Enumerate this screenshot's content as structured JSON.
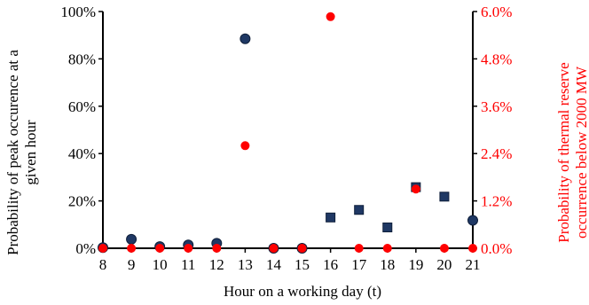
{
  "chart_data": {
    "type": "scatter",
    "xlabel": "Hour on a working day (t)",
    "ylabel_left_line1": "Probability of peak occurence at a",
    "ylabel_left_line2": "given hour",
    "ylabel_right_line1": "Probability of thermal reserve",
    "ylabel_right_line2": "occurrence below 2000 MW",
    "x_ticks": [
      "8",
      "9",
      "10",
      "11",
      "12",
      "13",
      "14",
      "15",
      "16",
      "17",
      "18",
      "19",
      "20",
      "21"
    ],
    "xlim": [
      8,
      21
    ],
    "y_left": {
      "lim": [
        0,
        100
      ],
      "ticks": [
        0,
        20,
        40,
        60,
        80,
        100
      ],
      "tick_labels": [
        "0%",
        "20%",
        "40%",
        "60%",
        "80%",
        "100%"
      ],
      "color": "#000000"
    },
    "y_right": {
      "lim": [
        0,
        6
      ],
      "ticks": [
        0,
        1.2,
        2.4,
        3.6,
        4.8,
        6.0
      ],
      "tick_labels": [
        "0.0%",
        "1.2%",
        "2.4%",
        "3.6%",
        "4.8%",
        "6.0%"
      ],
      "color": "#ff0000"
    },
    "series": [
      {
        "axis": "left",
        "color": "#1f3864",
        "points": [
          {
            "x": 8,
            "y": 0.3,
            "marker": "circle"
          },
          {
            "x": 9,
            "y": 3.8,
            "marker": "circle"
          },
          {
            "x": 10,
            "y": 0.7,
            "marker": "circle"
          },
          {
            "x": 11,
            "y": 1.4,
            "marker": "circle"
          },
          {
            "x": 12,
            "y": 2.1,
            "marker": "circle"
          },
          {
            "x": 13,
            "y": 88.5,
            "marker": "circle"
          },
          {
            "x": 14,
            "y": 0.0,
            "marker": "circle"
          },
          {
            "x": 15,
            "y": 0.0,
            "marker": "circle"
          },
          {
            "x": 16,
            "y": 13.0,
            "marker": "square"
          },
          {
            "x": 17,
            "y": 16.2,
            "marker": "square"
          },
          {
            "x": 18,
            "y": 8.8,
            "marker": "square"
          },
          {
            "x": 19,
            "y": 25.8,
            "marker": "square"
          },
          {
            "x": 20,
            "y": 21.8,
            "marker": "square"
          },
          {
            "x": 21,
            "y": 11.8,
            "marker": "circle"
          }
        ]
      },
      {
        "axis": "right",
        "color": "#ff0000",
        "points": [
          {
            "x": 8,
            "y": 0.0
          },
          {
            "x": 9,
            "y": 0.0
          },
          {
            "x": 10,
            "y": 0.0
          },
          {
            "x": 11,
            "y": 0.0
          },
          {
            "x": 12,
            "y": 0.0
          },
          {
            "x": 13,
            "y": 2.6
          },
          {
            "x": 14,
            "y": 0.0
          },
          {
            "x": 15,
            "y": 0.0
          },
          {
            "x": 16,
            "y": 5.87
          },
          {
            "x": 17,
            "y": 0.0
          },
          {
            "x": 18,
            "y": 0.0
          },
          {
            "x": 19,
            "y": 1.5
          },
          {
            "x": 20,
            "y": 0.0
          },
          {
            "x": 21,
            "y": 0.0
          }
        ]
      }
    ],
    "grid": false,
    "legend": "none"
  }
}
